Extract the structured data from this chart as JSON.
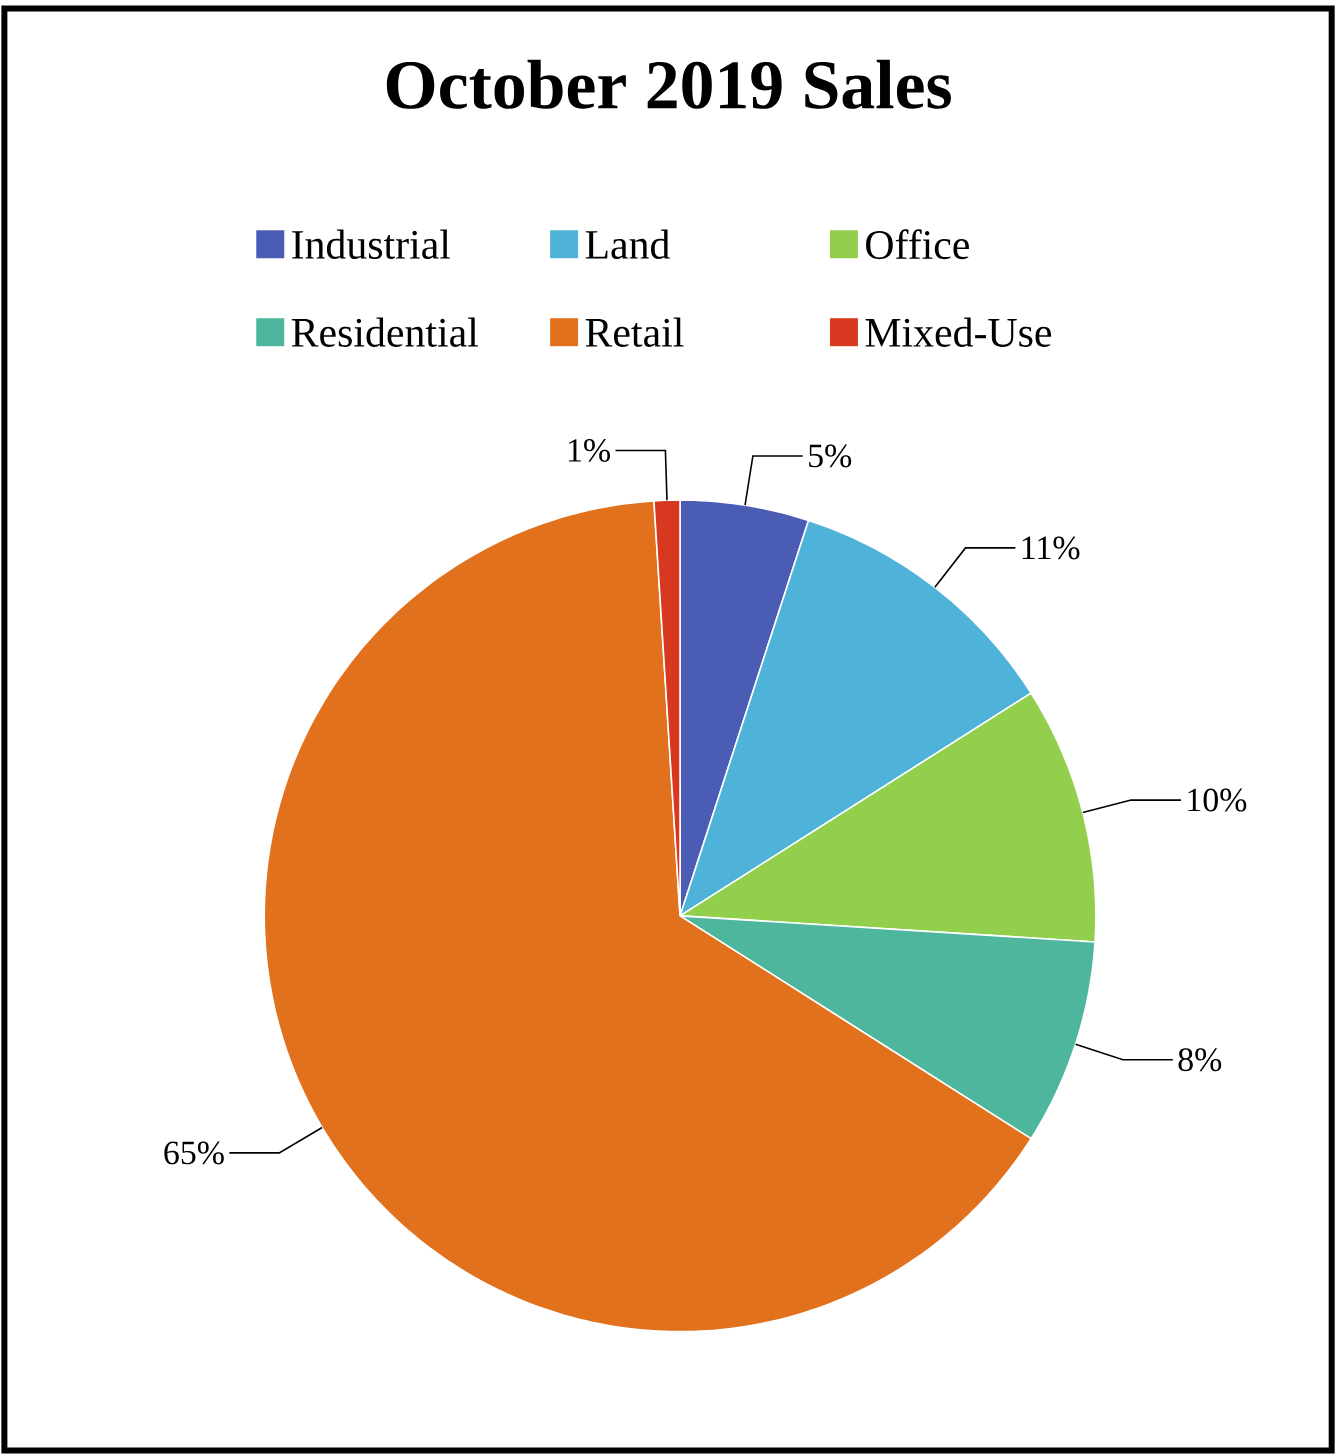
{
  "chart_data": {
    "type": "pie",
    "title": "October 2019 Sales",
    "categories": [
      "Industrial",
      "Land",
      "Office",
      "Residential",
      "Retail",
      "Mixed-Use"
    ],
    "values": [
      5,
      11,
      10,
      8,
      65,
      1
    ],
    "value_labels": [
      "5%",
      "11%",
      "10%",
      "8%",
      "65%",
      "1%"
    ],
    "colors": [
      "#4a5cb3",
      "#4fb2d8",
      "#92cf4c",
      "#4fb69e",
      "#e2711d",
      "#d8381f"
    ],
    "legend": "top"
  }
}
